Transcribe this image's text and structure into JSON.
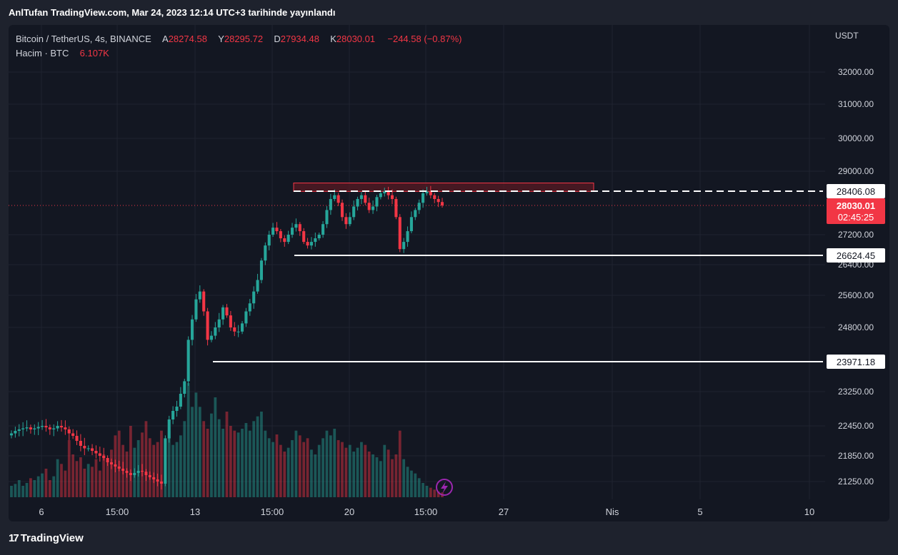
{
  "publication": "AnlTufan TradingView.com, Mar 24, 2023 12:14 UTC+3 tarihinde yayınlandı",
  "legend": {
    "symbol": "Bitcoin / TetherUS, 4s, BINANCE",
    "open_label": "A",
    "open": "28274.58",
    "high_label": "Y",
    "high": "28295.72",
    "low_label": "D",
    "low": "27934.48",
    "close_label": "K",
    "close": "28030.01",
    "change": "−244.58 (−0.87%)",
    "volume_label": "Hacim · BTC",
    "volume": "6.107K"
  },
  "currency": "USDT",
  "brand": {
    "mark": "17",
    "name": "TradingView"
  },
  "colors": {
    "up": "#26a69a",
    "down": "#f23645",
    "background": "#131722",
    "grid": "#1f2330",
    "text": "#d1d4dc",
    "zone_fill": "#5c1a22",
    "zone_stroke": "#f23645"
  },
  "chart_data": {
    "type": "candlestick",
    "symbol": "BTCUSDT",
    "timeframe": "4s",
    "price_ticks": [
      32000,
      31000,
      30000,
      29000,
      27200,
      26400,
      25600,
      24800,
      23250,
      22450,
      21850,
      21250
    ],
    "price_tick_labels": [
      "32000.00",
      "31000.00",
      "30000.00",
      "29000.00",
      "27200.00",
      "26400.00",
      "25600.00",
      "24800.00",
      "23250.00",
      "22450.00",
      "21850.00",
      "21250.00"
    ],
    "time_ticks": [
      "6",
      "15:00",
      "13",
      "15:00",
      "20",
      "15:00",
      "27",
      "Nis",
      "5",
      "10"
    ],
    "horizontal_levels": [
      {
        "price": 28406.08,
        "label": "28406.08",
        "style": "dashed"
      },
      {
        "price": 26624.45,
        "label": "26624.45",
        "style": "solid"
      },
      {
        "price": 23971.18,
        "label": "23971.18",
        "style": "solid"
      }
    ],
    "resistance_zone": {
      "from": 28400,
      "to": 28650
    },
    "last_price": {
      "label": "28030.01",
      "countdown": "02:45:25"
    },
    "price_path": [
      22300,
      22350,
      22380,
      22400,
      22420,
      22380,
      22400,
      22430,
      22450,
      22420,
      22380,
      22400,
      22450,
      22420,
      22380,
      22300,
      22250,
      22150,
      22050,
      22000,
      22000,
      21950,
      21900,
      21850,
      21800,
      21700,
      21650,
      21600,
      21550,
      21500,
      21450,
      21400,
      21450,
      21500,
      21480,
      21400,
      21350,
      21300,
      21250,
      21200,
      22200,
      22600,
      22800,
      22900,
      23200,
      23500,
      24500,
      25000,
      25500,
      25700,
      25200,
      24500,
      24600,
      24800,
      25000,
      25300,
      25100,
      24800,
      24700,
      24700,
      24900,
      25200,
      25400,
      25700,
      26000,
      26500,
      26900,
      27200,
      27400,
      27300,
      27100,
      27000,
      27200,
      27400,
      27500,
      27300,
      27000,
      26900,
      27000,
      27100,
      27200,
      27500,
      27900,
      28200,
      28300,
      28100,
      27700,
      27500,
      27700,
      28000,
      28200,
      28300,
      28100,
      27900,
      28000,
      28250,
      28350,
      28400,
      28300,
      28200,
      27700,
      26800,
      27000,
      27300,
      27700,
      27900,
      28100,
      28350,
      28400,
      28300,
      28200,
      28120,
      28030
    ],
    "volume_path": [
      12,
      14,
      18,
      12,
      15,
      20,
      18,
      22,
      25,
      30,
      18,
      22,
      40,
      35,
      28,
      60,
      45,
      38,
      42,
      30,
      35,
      32,
      40,
      28,
      45,
      38,
      50,
      65,
      70,
      55,
      48,
      75,
      52,
      60,
      68,
      80,
      62,
      55,
      58,
      70,
      62,
      70,
      55,
      58,
      65,
      80,
      120,
      95,
      110,
      95,
      80,
      72,
      88,
      105,
      82,
      72,
      90,
      75,
      70,
      68,
      72,
      78,
      70,
      80,
      85,
      90,
      70,
      62,
      58,
      66,
      55,
      48,
      52,
      60,
      70,
      65,
      58,
      62,
      50,
      45,
      55,
      62,
      70,
      65,
      72,
      60,
      58,
      52,
      55,
      48,
      52,
      58,
      55,
      48,
      45,
      42,
      38,
      55,
      50,
      40,
      45,
      70,
      40,
      32,
      28,
      25,
      20,
      15,
      12,
      10,
      8,
      6,
      5
    ]
  }
}
